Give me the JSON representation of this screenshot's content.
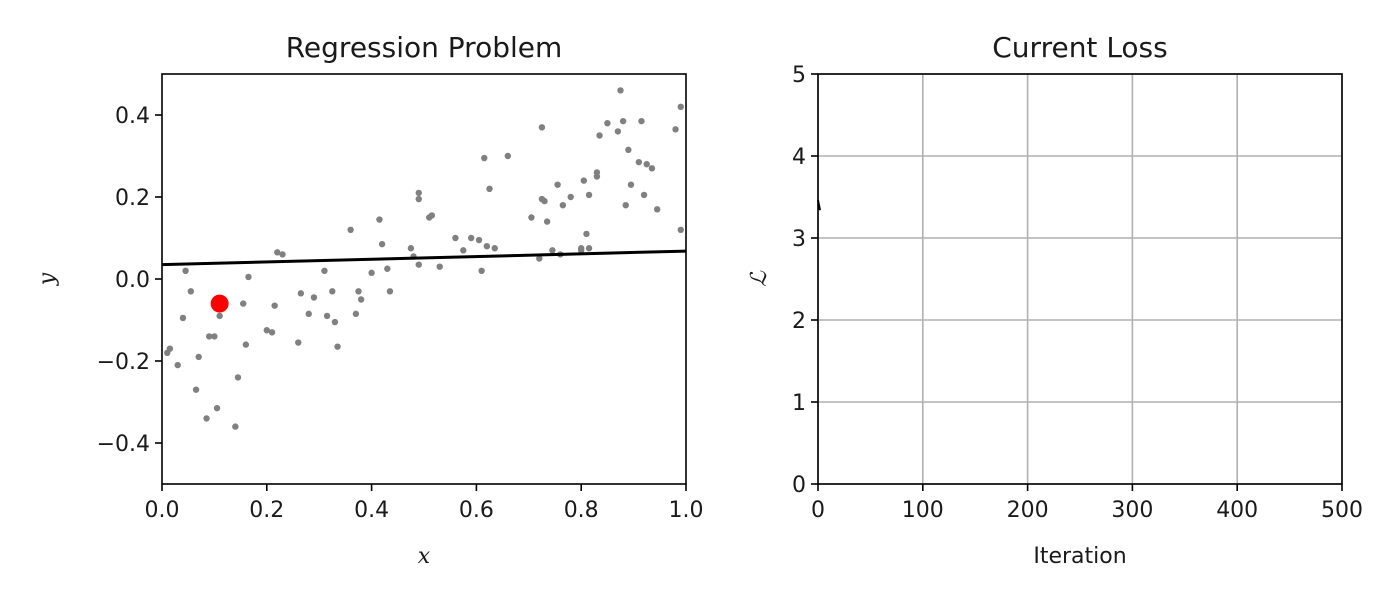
{
  "chart_data": [
    {
      "type": "scatter",
      "title": "Regression Problem",
      "xlabel": "x",
      "ylabel": "y",
      "xlim": [
        0.0,
        1.0
      ],
      "ylim": [
        -0.5,
        0.5
      ],
      "xticks": [
        "0.0",
        "0.2",
        "0.4",
        "0.6",
        "0.8",
        "1.0"
      ],
      "yticks": [
        "−0.4",
        "−0.2",
        "0.0",
        "0.2",
        "0.4"
      ],
      "xtick_values": [
        0.0,
        0.2,
        0.4,
        0.6,
        0.8,
        1.0
      ],
      "ytick_values": [
        -0.4,
        -0.2,
        0.0,
        0.2,
        0.4
      ],
      "grid": false,
      "colors": {
        "points": "#808080",
        "highlight": "#ff0000",
        "line": "#000000"
      },
      "series": [
        {
          "kind": "points",
          "x": [
            0.01,
            0.015,
            0.03,
            0.04,
            0.045,
            0.055,
            0.065,
            0.07,
            0.085,
            0.09,
            0.1,
            0.105,
            0.11,
            0.14,
            0.145,
            0.155,
            0.16,
            0.165,
            0.2,
            0.21,
            0.215,
            0.22,
            0.23,
            0.26,
            0.265,
            0.28,
            0.29,
            0.31,
            0.315,
            0.325,
            0.33,
            0.335,
            0.36,
            0.37,
            0.375,
            0.38,
            0.4,
            0.415,
            0.42,
            0.43,
            0.435,
            0.475,
            0.48,
            0.49,
            0.49,
            0.49,
            0.51,
            0.515,
            0.53,
            0.56,
            0.575,
            0.59,
            0.605,
            0.61,
            0.615,
            0.62,
            0.625,
            0.635,
            0.66,
            0.705,
            0.72,
            0.725,
            0.725,
            0.73,
            0.735,
            0.745,
            0.755,
            0.76,
            0.765,
            0.78,
            0.8,
            0.8,
            0.805,
            0.81,
            0.815,
            0.815,
            0.83,
            0.83,
            0.835,
            0.85,
            0.87,
            0.875,
            0.88,
            0.885,
            0.89,
            0.895,
            0.91,
            0.915,
            0.92,
            0.925,
            0.935,
            0.945,
            0.98,
            0.99,
            0.99
          ],
          "y": [
            -0.18,
            -0.17,
            -0.21,
            -0.095,
            0.02,
            -0.03,
            -0.27,
            -0.19,
            -0.34,
            -0.14,
            -0.14,
            -0.315,
            -0.09,
            -0.36,
            -0.24,
            -0.06,
            -0.16,
            0.005,
            -0.125,
            -0.13,
            -0.065,
            0.065,
            0.06,
            -0.155,
            -0.035,
            -0.085,
            -0.045,
            0.02,
            -0.09,
            -0.03,
            -0.105,
            -0.165,
            0.12,
            -0.085,
            -0.03,
            -0.05,
            0.015,
            0.145,
            0.085,
            0.025,
            -0.03,
            0.075,
            0.055,
            0.21,
            0.195,
            0.035,
            0.15,
            0.155,
            0.03,
            0.1,
            0.07,
            0.1,
            0.095,
            0.02,
            0.295,
            0.08,
            0.22,
            0.075,
            0.3,
            0.15,
            0.05,
            0.37,
            0.195,
            0.19,
            0.14,
            0.07,
            0.23,
            0.06,
            0.18,
            0.2,
            0.07,
            0.075,
            0.24,
            0.11,
            0.205,
            0.075,
            0.25,
            0.26,
            0.35,
            0.38,
            0.36,
            0.46,
            0.385,
            0.18,
            0.315,
            0.23,
            0.285,
            0.385,
            0.205,
            0.28,
            0.27,
            0.17,
            0.365,
            0.42,
            0.12
          ]
        },
        {
          "kind": "line",
          "x": [
            0.0,
            1.0
          ],
          "y": [
            0.035,
            0.068
          ]
        },
        {
          "kind": "highlight",
          "x": [
            0.11
          ],
          "y": [
            -0.06
          ]
        }
      ]
    },
    {
      "type": "line",
      "title": "Current Loss",
      "xlabel": "Iteration",
      "ylabel": "ℒ",
      "xlim": [
        0,
        500
      ],
      "ylim": [
        0,
        5
      ],
      "xticks": [
        "0",
        "100",
        "200",
        "300",
        "400",
        "500"
      ],
      "yticks": [
        "0",
        "1",
        "2",
        "3",
        "4",
        "5"
      ],
      "xtick_values": [
        0,
        100,
        200,
        300,
        400,
        500
      ],
      "ytick_values": [
        0,
        1,
        2,
        3,
        4,
        5
      ],
      "grid": true,
      "colors": {
        "grid": "#b0b0b0",
        "line": "#000000"
      },
      "series": [
        {
          "kind": "line",
          "x": [
            0
          ],
          "y": [
            3.4
          ]
        }
      ]
    }
  ]
}
